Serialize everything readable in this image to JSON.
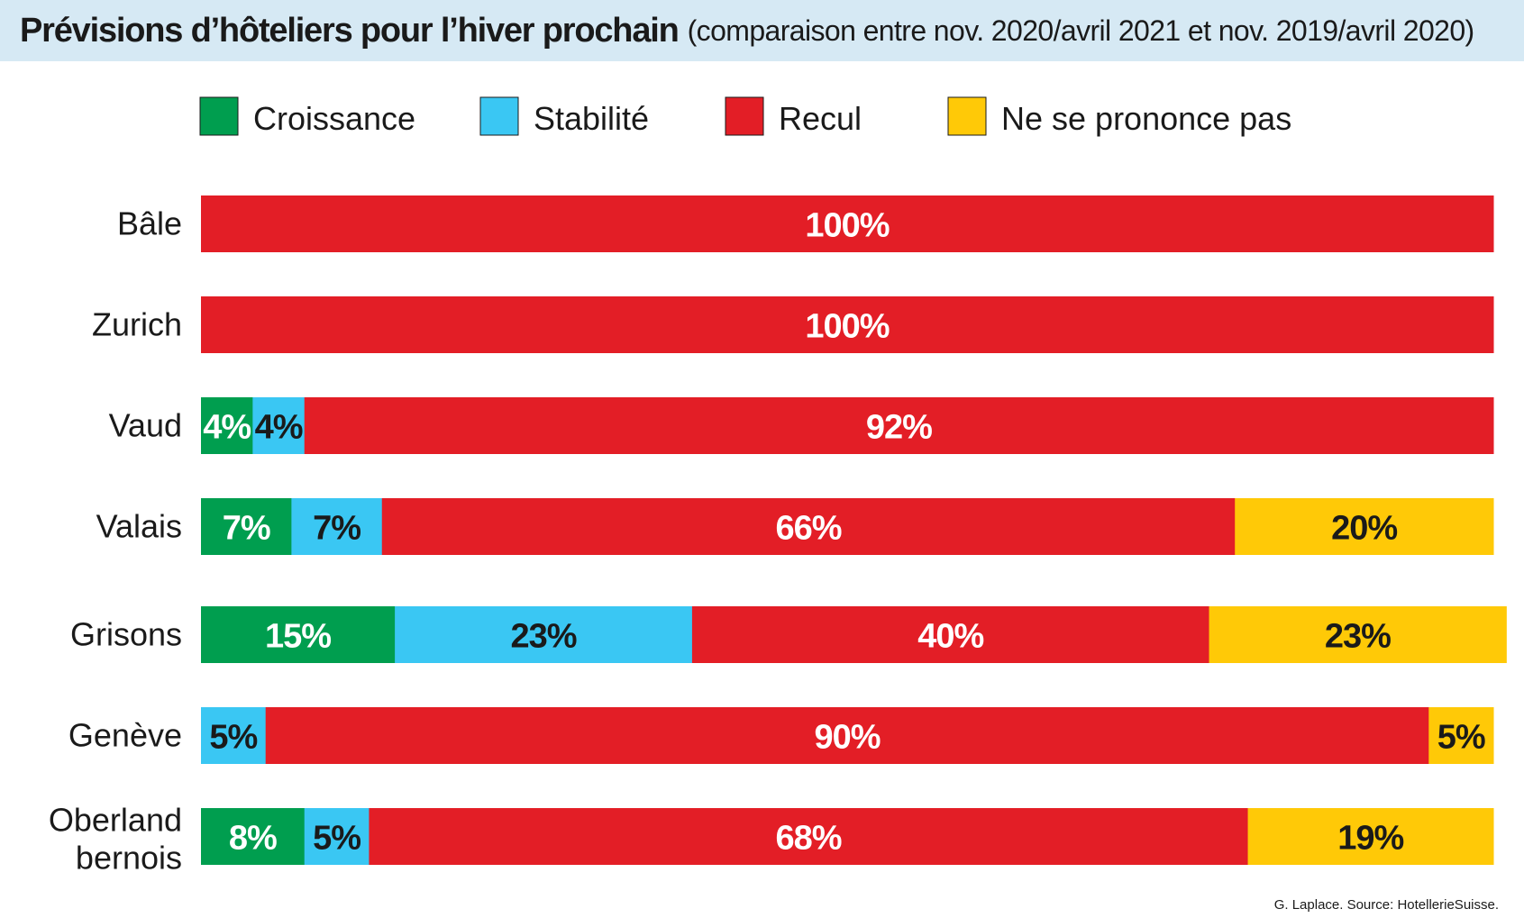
{
  "header": {
    "title": "Prévisions d’hôteliers pour l’hiver prochain",
    "subtitle": "(comparaison entre nov. 2020/avril 2021 et nov. 2019/avril 2020)"
  },
  "credit": "G. Laplace. Source: HotellerieSuisse.",
  "chart_data": {
    "type": "bar",
    "orientation": "horizontal",
    "stacked": true,
    "title": "Prévisions d’hôteliers pour l’hiver prochain",
    "subtitle": "(comparaison entre nov. 2020/avril 2021 et nov. 2019/avril 2020)",
    "xlim": [
      0,
      100
    ],
    "grid": false,
    "legend_position": "top",
    "categories": [
      [
        "Bâle"
      ],
      [
        "Zurich"
      ],
      [
        "Vaud"
      ],
      [
        "Valais"
      ],
      [
        "Grisons"
      ],
      [
        "Genève"
      ],
      [
        "Oberland",
        "bernois"
      ]
    ],
    "series": [
      {
        "name": "Croissance",
        "color": "#009e4f",
        "label_color": "#ffffff",
        "values": [
          0,
          0,
          4,
          7,
          15,
          0,
          8
        ]
      },
      {
        "name": "Stabilité",
        "color": "#3ac7f3",
        "label_color": "#1a1a1a",
        "values": [
          0,
          0,
          4,
          7,
          23,
          5,
          5
        ]
      },
      {
        "name": "Recul",
        "color": "#e31e26",
        "label_color": "#ffffff",
        "values": [
          100,
          100,
          92,
          66,
          40,
          90,
          68
        ]
      },
      {
        "name": "Ne se prononce pas",
        "color": "#ffc907",
        "label_color": "#1a1a1a",
        "values": [
          0,
          0,
          0,
          20,
          23,
          5,
          19
        ]
      }
    ]
  }
}
